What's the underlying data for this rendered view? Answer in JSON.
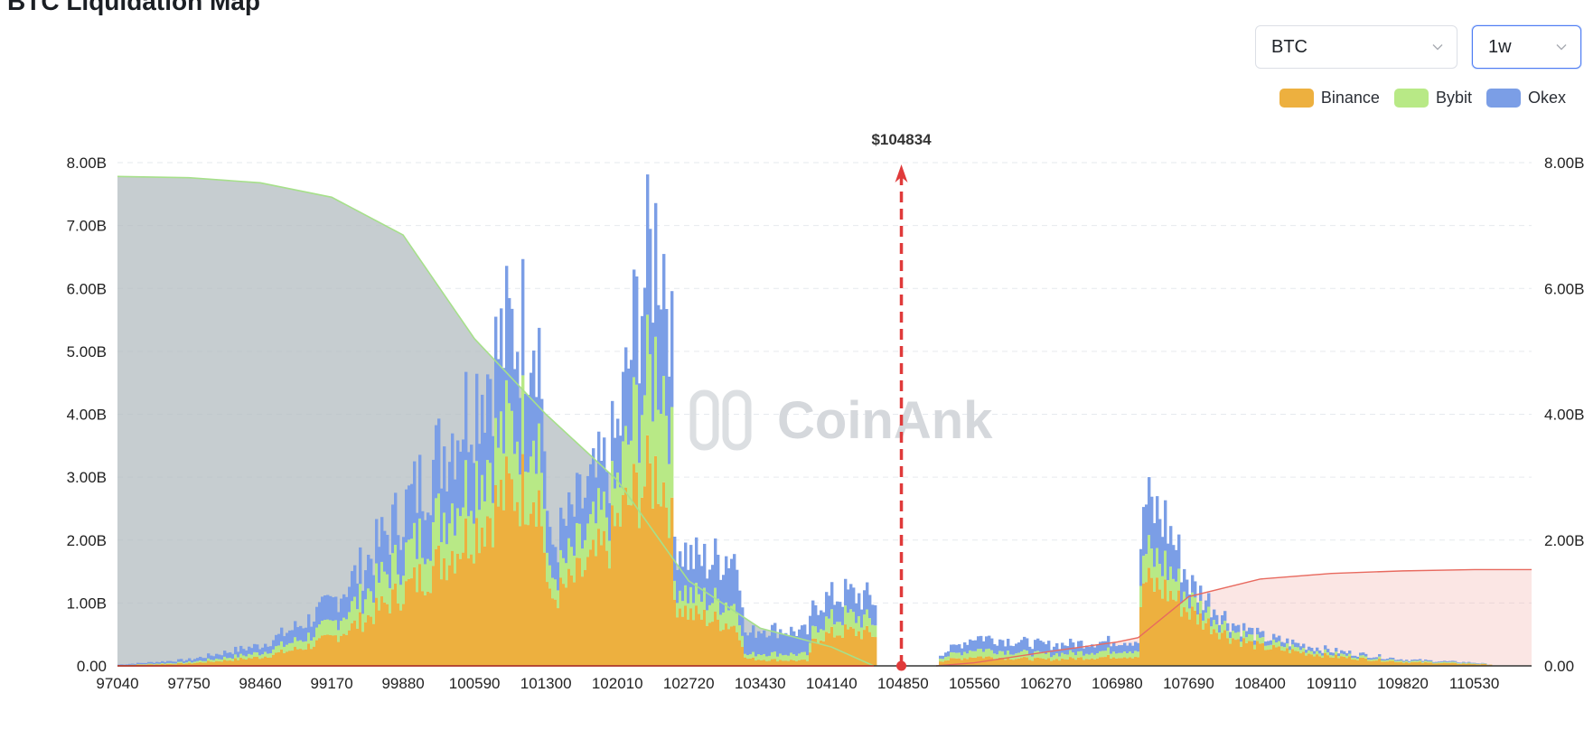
{
  "page": {
    "title": "BTC Liquidation Map"
  },
  "controls": {
    "coin_select": {
      "value": "BTC"
    },
    "period_select": {
      "value": "1w"
    }
  },
  "legend": [
    {
      "label": "Binance",
      "color": "#edb03f"
    },
    {
      "label": "Bybit",
      "color": "#b8e986"
    },
    {
      "label": "Okex",
      "color": "#7b9ee6"
    }
  ],
  "watermark": "CoinAnk",
  "chart_data": {
    "type": "bar",
    "title": "",
    "current_price_label": "$104834",
    "current_price": 104834,
    "x_tick_labels": [
      "97040",
      "97750",
      "98460",
      "99170",
      "99880",
      "100590",
      "101300",
      "102010",
      "102720",
      "103430",
      "104140",
      "104850",
      "105560",
      "106270",
      "106980",
      "107690",
      "108400",
      "109110",
      "109820",
      "110530"
    ],
    "x_range": [
      97040,
      111100
    ],
    "y_tick_labels": [
      "0.00",
      "1.00B",
      "2.00B",
      "3.00B",
      "4.00B",
      "5.00B",
      "6.00B",
      "7.00B",
      "8.00B"
    ],
    "y_right_tick_labels": [
      "0.00",
      "2.00B",
      "4.00B",
      "6.00B",
      "8.00B"
    ],
    "ylim": [
      0,
      8
    ],
    "y_unit": "B",
    "stacked": true,
    "grid": true,
    "legend_position": "top-right",
    "series": [
      {
        "name": "Binance",
        "color": "#edb03f",
        "points": [
          {
            "x": 97040,
            "y": 0.01
          },
          {
            "x": 97750,
            "y": 0.04
          },
          {
            "x": 98200,
            "y": 0.1
          },
          {
            "x": 98460,
            "y": 0.14
          },
          {
            "x": 98900,
            "y": 0.3
          },
          {
            "x": 99170,
            "y": 0.45
          },
          {
            "x": 99500,
            "y": 0.75
          },
          {
            "x": 99880,
            "y": 1.2
          },
          {
            "x": 100200,
            "y": 1.6
          },
          {
            "x": 100590,
            "y": 2.2
          },
          {
            "x": 100900,
            "y": 2.75
          },
          {
            "x": 101200,
            "y": 2.9
          },
          {
            "x": 101280,
            "y": 1.8
          },
          {
            "x": 101310,
            "y": 1.0
          },
          {
            "x": 101600,
            "y": 1.4
          },
          {
            "x": 101900,
            "y": 1.9
          },
          {
            "x": 102010,
            "y": 2.3
          },
          {
            "x": 102200,
            "y": 2.8
          },
          {
            "x": 102400,
            "y": 3.1
          },
          {
            "x": 102530,
            "y": 2.6
          },
          {
            "x": 102560,
            "y": 1.05
          },
          {
            "x": 102720,
            "y": 0.82
          },
          {
            "x": 102900,
            "y": 0.75
          },
          {
            "x": 103150,
            "y": 0.65
          },
          {
            "x": 103230,
            "y": 0.5
          },
          {
            "x": 103260,
            "y": 0.12
          },
          {
            "x": 103430,
            "y": 0.1
          },
          {
            "x": 103900,
            "y": 0.08
          },
          {
            "x": 103950,
            "y": 0.45
          },
          {
            "x": 104280,
            "y": 0.55
          },
          {
            "x": 104560,
            "y": 0.5
          },
          {
            "x": 104580,
            "y": 0.0
          },
          {
            "x": 105180,
            "y": 0.0
          },
          {
            "x": 105200,
            "y": 0.08
          },
          {
            "x": 105560,
            "y": 0.15
          },
          {
            "x": 106270,
            "y": 0.1
          },
          {
            "x": 106980,
            "y": 0.15
          },
          {
            "x": 107190,
            "y": 0.15
          },
          {
            "x": 107210,
            "y": 1.35
          },
          {
            "x": 107450,
            "y": 1.2
          },
          {
            "x": 107690,
            "y": 0.85
          },
          {
            "x": 108100,
            "y": 0.45
          },
          {
            "x": 108400,
            "y": 0.3
          },
          {
            "x": 109110,
            "y": 0.15
          },
          {
            "x": 109820,
            "y": 0.06
          },
          {
            "x": 110530,
            "y": 0.03
          },
          {
            "x": 110700,
            "y": 0.02
          }
        ]
      },
      {
        "name": "Bybit",
        "color": "#b8e986",
        "points": [
          {
            "x": 97040,
            "y": 0.0
          },
          {
            "x": 97750,
            "y": 0.02
          },
          {
            "x": 98200,
            "y": 0.05
          },
          {
            "x": 98460,
            "y": 0.07
          },
          {
            "x": 98900,
            "y": 0.15
          },
          {
            "x": 99170,
            "y": 0.22
          },
          {
            "x": 99500,
            "y": 0.4
          },
          {
            "x": 99880,
            "y": 0.55
          },
          {
            "x": 100200,
            "y": 0.7
          },
          {
            "x": 100590,
            "y": 0.85
          },
          {
            "x": 100900,
            "y": 1.0
          },
          {
            "x": 101200,
            "y": 1.1
          },
          {
            "x": 101280,
            "y": 0.7
          },
          {
            "x": 101310,
            "y": 0.3
          },
          {
            "x": 101600,
            "y": 0.45
          },
          {
            "x": 101900,
            "y": 0.55
          },
          {
            "x": 102010,
            "y": 0.6
          },
          {
            "x": 102200,
            "y": 1.3
          },
          {
            "x": 102400,
            "y": 1.8
          },
          {
            "x": 102530,
            "y": 1.5
          },
          {
            "x": 102560,
            "y": 0.3
          },
          {
            "x": 102720,
            "y": 0.3
          },
          {
            "x": 102900,
            "y": 0.3
          },
          {
            "x": 103150,
            "y": 0.35
          },
          {
            "x": 103230,
            "y": 0.3
          },
          {
            "x": 103260,
            "y": 0.05
          },
          {
            "x": 103430,
            "y": 0.1
          },
          {
            "x": 103900,
            "y": 0.1
          },
          {
            "x": 103950,
            "y": 0.2
          },
          {
            "x": 104280,
            "y": 0.25
          },
          {
            "x": 104560,
            "y": 0.2
          },
          {
            "x": 104580,
            "y": 0.0
          },
          {
            "x": 105180,
            "y": 0.0
          },
          {
            "x": 105200,
            "y": 0.05
          },
          {
            "x": 105560,
            "y": 0.12
          },
          {
            "x": 106270,
            "y": 0.08
          },
          {
            "x": 106980,
            "y": 0.1
          },
          {
            "x": 107190,
            "y": 0.1
          },
          {
            "x": 107210,
            "y": 0.45
          },
          {
            "x": 107450,
            "y": 0.4
          },
          {
            "x": 107690,
            "y": 0.2
          },
          {
            "x": 108100,
            "y": 0.12
          },
          {
            "x": 108400,
            "y": 0.08
          },
          {
            "x": 109110,
            "y": 0.04
          },
          {
            "x": 109820,
            "y": 0.02
          },
          {
            "x": 110530,
            "y": 0.01
          },
          {
            "x": 110700,
            "y": 0.0
          }
        ]
      },
      {
        "name": "Okex",
        "color": "#7b9ee6",
        "points": [
          {
            "x": 97040,
            "y": 0.01
          },
          {
            "x": 97750,
            "y": 0.04
          },
          {
            "x": 98200,
            "y": 0.1
          },
          {
            "x": 98460,
            "y": 0.12
          },
          {
            "x": 98900,
            "y": 0.25
          },
          {
            "x": 99170,
            "y": 0.35
          },
          {
            "x": 99500,
            "y": 0.5
          },
          {
            "x": 99880,
            "y": 0.75
          },
          {
            "x": 100200,
            "y": 1.0
          },
          {
            "x": 100590,
            "y": 1.3
          },
          {
            "x": 100900,
            "y": 1.5
          },
          {
            "x": 101200,
            "y": 1.6
          },
          {
            "x": 101280,
            "y": 0.9
          },
          {
            "x": 101310,
            "y": 0.5
          },
          {
            "x": 101600,
            "y": 0.65
          },
          {
            "x": 101900,
            "y": 0.75
          },
          {
            "x": 102010,
            "y": 0.8
          },
          {
            "x": 102200,
            "y": 1.6
          },
          {
            "x": 102400,
            "y": 2.0
          },
          {
            "x": 102530,
            "y": 1.8
          },
          {
            "x": 102560,
            "y": 0.7
          },
          {
            "x": 102720,
            "y": 0.6
          },
          {
            "x": 102900,
            "y": 0.6
          },
          {
            "x": 103150,
            "y": 0.8
          },
          {
            "x": 103230,
            "y": 0.7
          },
          {
            "x": 103260,
            "y": 0.3
          },
          {
            "x": 103430,
            "y": 0.4
          },
          {
            "x": 103900,
            "y": 0.35
          },
          {
            "x": 103950,
            "y": 0.35
          },
          {
            "x": 104280,
            "y": 0.35
          },
          {
            "x": 104560,
            "y": 0.35
          },
          {
            "x": 104580,
            "y": 0.0
          },
          {
            "x": 105180,
            "y": 0.0
          },
          {
            "x": 105200,
            "y": 0.05
          },
          {
            "x": 105560,
            "y": 0.2
          },
          {
            "x": 106270,
            "y": 0.15
          },
          {
            "x": 106980,
            "y": 0.15
          },
          {
            "x": 107190,
            "y": 0.15
          },
          {
            "x": 107210,
            "y": 0.8
          },
          {
            "x": 107450,
            "y": 0.7
          },
          {
            "x": 107690,
            "y": 0.25
          },
          {
            "x": 108100,
            "y": 0.12
          },
          {
            "x": 108400,
            "y": 0.08
          },
          {
            "x": 109110,
            "y": 0.05
          },
          {
            "x": 109820,
            "y": 0.02
          },
          {
            "x": 110530,
            "y": 0.01
          },
          {
            "x": 110700,
            "y": 0.0
          }
        ]
      },
      {
        "name": "cumulative_long",
        "color": "#b3bcc0",
        "points": [
          {
            "x": 97040,
            "y": 7.78
          },
          {
            "x": 97750,
            "y": 7.76
          },
          {
            "x": 98460,
            "y": 7.68
          },
          {
            "x": 99170,
            "y": 7.45
          },
          {
            "x": 99880,
            "y": 6.85
          },
          {
            "x": 100590,
            "y": 5.2
          },
          {
            "x": 101300,
            "y": 4.0
          },
          {
            "x": 102010,
            "y": 2.95
          },
          {
            "x": 102720,
            "y": 1.35
          },
          {
            "x": 103430,
            "y": 0.6
          },
          {
            "x": 104140,
            "y": 0.3
          },
          {
            "x": 104560,
            "y": 0.0
          }
        ]
      },
      {
        "name": "cumulative_short",
        "color": "#f4b6b2",
        "points": [
          {
            "x": 105180,
            "y": 0.0
          },
          {
            "x": 105560,
            "y": 0.05
          },
          {
            "x": 106270,
            "y": 0.22
          },
          {
            "x": 106980,
            "y": 0.38
          },
          {
            "x": 107190,
            "y": 0.45
          },
          {
            "x": 107690,
            "y": 1.1
          },
          {
            "x": 108400,
            "y": 1.38
          },
          {
            "x": 109110,
            "y": 1.47
          },
          {
            "x": 109820,
            "y": 1.51
          },
          {
            "x": 110530,
            "y": 1.53
          },
          {
            "x": 111100,
            "y": 1.53
          }
        ]
      }
    ]
  }
}
